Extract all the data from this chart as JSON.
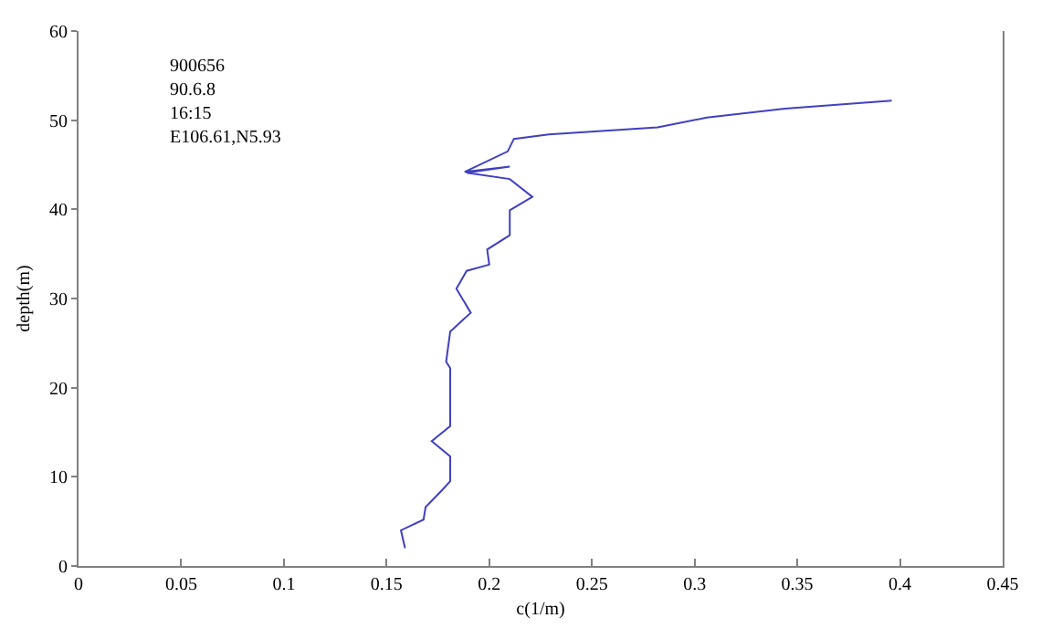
{
  "chart_data": {
    "type": "line",
    "xlabel": "c(1/m)",
    "ylabel": "depth(m)",
    "annotations": [
      "900656",
      "90.6.8",
      "16:15",
      "E106.61,N5.93"
    ],
    "xlim": [
      0,
      0.45
    ],
    "xticks": [
      0,
      0.05,
      0.1,
      0.15,
      0.2,
      0.25,
      0.3,
      0.35,
      0.4,
      0.45
    ],
    "ylim": [
      0,
      60
    ],
    "yticks": [
      0,
      10,
      20,
      30,
      40,
      50,
      60
    ],
    "series": [
      {
        "color": "#4040c0",
        "x": [
          0.159,
          0.157,
          0.168,
          0.169,
          0.177,
          0.181,
          0.181,
          0.172,
          0.181,
          0.181,
          0.179,
          0.181,
          0.191,
          0.184,
          0.189,
          0.2,
          0.199,
          0.21,
          0.21,
          0.221,
          0.21,
          0.189,
          0.21,
          0.188,
          0.209,
          0.212,
          0.229,
          0.282,
          0.306,
          0.344,
          0.396
        ],
        "values": [
          2.0,
          4.0,
          5.2,
          6.6,
          8.5,
          9.5,
          12.3,
          14.0,
          15.7,
          22.2,
          22.9,
          26.3,
          28.4,
          31.1,
          33.1,
          33.8,
          35.5,
          37.1,
          39.9,
          41.4,
          43.4,
          44.1,
          44.8,
          44.2,
          46.5,
          47.9,
          48.4,
          49.2,
          50.3,
          51.3,
          52.2
        ]
      }
    ]
  }
}
